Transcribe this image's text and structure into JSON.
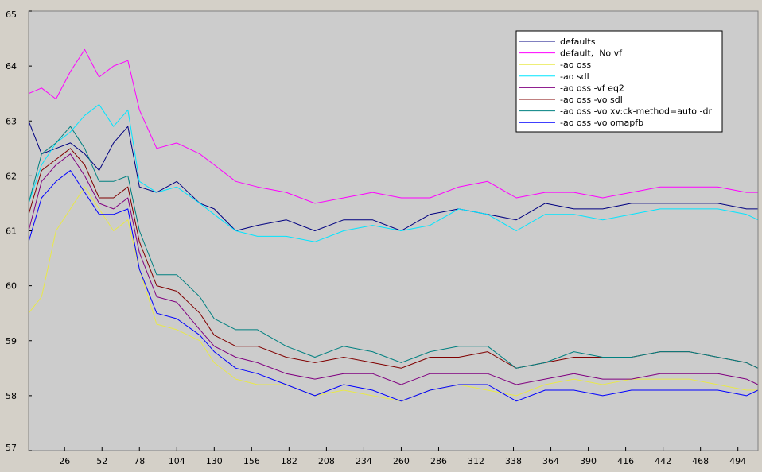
{
  "chart_data": {
    "type": "line",
    "title": "",
    "xlabel": "",
    "ylabel": "",
    "xlim": [
      1,
      508
    ],
    "ylim": [
      57,
      65
    ],
    "xticks": [
      26,
      52,
      78,
      104,
      130,
      156,
      182,
      208,
      234,
      260,
      286,
      312,
      338,
      364,
      390,
      416,
      442,
      468,
      494
    ],
    "yticks": [
      57,
      58,
      59,
      60,
      61,
      62,
      63,
      64,
      65
    ],
    "grid": false,
    "legend_position": "top-right",
    "colors": {
      "plot_background": "#cccccc",
      "frame_background": "#d4d0c8",
      "legend_background": "#ffffff"
    },
    "series": [
      {
        "name": "defaults",
        "color": "#000080",
        "x": [
          1,
          10,
          20,
          30,
          40,
          50,
          60,
          70,
          78,
          90,
          104,
          120,
          130,
          145,
          160,
          180,
          200,
          220,
          240,
          260,
          280,
          300,
          320,
          340,
          360,
          380,
          400,
          420,
          440,
          460,
          480,
          500,
          508
        ],
        "y": [
          63.0,
          62.4,
          62.5,
          62.6,
          62.4,
          62.1,
          62.6,
          62.9,
          61.8,
          61.7,
          61.9,
          61.5,
          61.4,
          61.0,
          61.1,
          61.2,
          61.0,
          61.2,
          61.2,
          61.0,
          61.3,
          61.4,
          61.3,
          61.2,
          61.5,
          61.4,
          61.4,
          61.5,
          61.5,
          61.5,
          61.5,
          61.4,
          61.4
        ]
      },
      {
        "name": "default,  No vf",
        "color": "#ff00ff",
        "x": [
          1,
          10,
          20,
          30,
          40,
          50,
          60,
          70,
          78,
          90,
          104,
          120,
          130,
          145,
          160,
          180,
          200,
          220,
          240,
          260,
          280,
          300,
          320,
          340,
          360,
          380,
          400,
          420,
          440,
          460,
          480,
          500,
          508
        ],
        "y": [
          63.5,
          63.6,
          63.4,
          63.9,
          64.3,
          63.8,
          64.0,
          64.1,
          63.2,
          62.5,
          62.6,
          62.4,
          62.2,
          61.9,
          61.8,
          61.7,
          61.5,
          61.6,
          61.7,
          61.6,
          61.6,
          61.8,
          61.9,
          61.6,
          61.7,
          61.7,
          61.6,
          61.7,
          61.8,
          61.8,
          61.8,
          61.7,
          61.7
        ]
      },
      {
        "name": "-ao oss",
        "color": "#e8e84a",
        "x": [
          1,
          10,
          20,
          30,
          40,
          50,
          60,
          70,
          78,
          90,
          104,
          120,
          130,
          145,
          160,
          180,
          200,
          220,
          240,
          260,
          280,
          300,
          320,
          340,
          360,
          380,
          400,
          420,
          440,
          460,
          480,
          500,
          508
        ],
        "y": [
          59.5,
          59.8,
          61.0,
          61.4,
          61.8,
          61.4,
          61.0,
          61.2,
          60.3,
          59.3,
          59.2,
          59.0,
          58.6,
          58.3,
          58.2,
          58.2,
          58.0,
          58.1,
          58.0,
          57.9,
          58.1,
          58.2,
          58.1,
          58.0,
          58.2,
          58.3,
          58.2,
          58.3,
          58.3,
          58.3,
          58.2,
          58.1,
          58.1
        ]
      },
      {
        "name": "-ao sdl",
        "color": "#00e5ff",
        "x": [
          1,
          10,
          20,
          30,
          40,
          50,
          60,
          70,
          78,
          90,
          104,
          120,
          130,
          145,
          160,
          180,
          200,
          220,
          240,
          260,
          280,
          300,
          320,
          340,
          360,
          380,
          400,
          420,
          440,
          460,
          480,
          500,
          508
        ],
        "y": [
          61.5,
          62.2,
          62.6,
          62.8,
          63.1,
          63.3,
          62.9,
          63.2,
          61.9,
          61.7,
          61.8,
          61.5,
          61.3,
          61.0,
          60.9,
          60.9,
          60.8,
          61.0,
          61.1,
          61.0,
          61.1,
          61.4,
          61.3,
          61.0,
          61.3,
          61.3,
          61.2,
          61.3,
          61.4,
          61.4,
          61.4,
          61.3,
          61.2
        ]
      },
      {
        "name": "-ao oss -vf eq2",
        "color": "#800080",
        "x": [
          1,
          10,
          20,
          30,
          40,
          50,
          60,
          70,
          78,
          90,
          104,
          120,
          130,
          145,
          160,
          180,
          200,
          220,
          240,
          260,
          280,
          300,
          320,
          340,
          360,
          380,
          400,
          420,
          440,
          460,
          480,
          500,
          508
        ],
        "y": [
          61.0,
          61.9,
          62.2,
          62.4,
          62.0,
          61.5,
          61.4,
          61.6,
          60.6,
          59.8,
          59.7,
          59.2,
          58.9,
          58.7,
          58.6,
          58.4,
          58.3,
          58.4,
          58.4,
          58.2,
          58.4,
          58.4,
          58.4,
          58.2,
          58.3,
          58.4,
          58.3,
          58.3,
          58.4,
          58.4,
          58.4,
          58.3,
          58.2
        ]
      },
      {
        "name": "-ao oss -vo sdl",
        "color": "#800000",
        "x": [
          1,
          10,
          20,
          30,
          40,
          50,
          60,
          70,
          78,
          90,
          104,
          120,
          130,
          145,
          160,
          180,
          200,
          220,
          240,
          260,
          280,
          300,
          320,
          340,
          360,
          380,
          400,
          420,
          440,
          460,
          480,
          500,
          508
        ],
        "y": [
          61.3,
          62.1,
          62.3,
          62.5,
          62.2,
          61.6,
          61.6,
          61.8,
          60.8,
          60.0,
          59.9,
          59.5,
          59.1,
          58.9,
          58.9,
          58.7,
          58.6,
          58.7,
          58.6,
          58.5,
          58.7,
          58.7,
          58.8,
          58.5,
          58.6,
          58.7,
          58.7,
          58.7,
          58.8,
          58.8,
          58.7,
          58.6,
          58.5
        ]
      },
      {
        "name": "-ao oss -vo xv:ck-method=auto -dr",
        "color": "#008080",
        "x": [
          1,
          10,
          20,
          30,
          40,
          50,
          60,
          70,
          78,
          90,
          104,
          120,
          130,
          145,
          160,
          180,
          200,
          220,
          240,
          260,
          280,
          300,
          320,
          340,
          360,
          380,
          400,
          420,
          440,
          460,
          480,
          500,
          508
        ],
        "y": [
          61.5,
          62.4,
          62.6,
          62.9,
          62.5,
          61.9,
          61.9,
          62.0,
          61.0,
          60.2,
          60.2,
          59.8,
          59.4,
          59.2,
          59.2,
          58.9,
          58.7,
          58.9,
          58.8,
          58.6,
          58.8,
          58.9,
          58.9,
          58.5,
          58.6,
          58.8,
          58.7,
          58.7,
          58.8,
          58.8,
          58.7,
          58.6,
          58.5
        ]
      },
      {
        "name": "-ao oss -vo omapfb",
        "color": "#0000ff",
        "x": [
          1,
          10,
          20,
          30,
          40,
          50,
          60,
          70,
          78,
          90,
          104,
          120,
          130,
          145,
          160,
          180,
          200,
          220,
          240,
          260,
          280,
          300,
          320,
          340,
          360,
          380,
          400,
          420,
          440,
          460,
          480,
          500,
          508
        ],
        "y": [
          60.8,
          61.6,
          61.9,
          62.1,
          61.7,
          61.3,
          61.3,
          61.4,
          60.3,
          59.5,
          59.4,
          59.1,
          58.8,
          58.5,
          58.4,
          58.2,
          58.0,
          58.2,
          58.1,
          57.9,
          58.1,
          58.2,
          58.2,
          57.9,
          58.1,
          58.1,
          58.0,
          58.1,
          58.1,
          58.1,
          58.1,
          58.0,
          58.1
        ]
      }
    ]
  }
}
